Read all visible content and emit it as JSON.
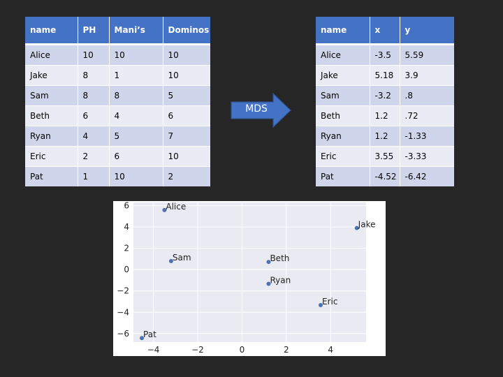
{
  "left_table": {
    "headers": [
      "name",
      "PH",
      "Mani’s",
      "Dominos"
    ],
    "rows": [
      [
        "Alice",
        "10",
        "10",
        "10"
      ],
      [
        "Jake",
        "8",
        "1",
        "10"
      ],
      [
        "Sam",
        "8",
        "8",
        "5"
      ],
      [
        "Beth",
        "6",
        "4",
        "6"
      ],
      [
        "Ryan",
        "4",
        "5",
        "7"
      ],
      [
        "Eric",
        "2",
        "6",
        "10"
      ],
      [
        "Pat",
        "1",
        "10",
        "2"
      ]
    ]
  },
  "arrow": {
    "label": "MDS"
  },
  "right_table": {
    "headers": [
      "name",
      "x",
      "y"
    ],
    "rows": [
      [
        "Alice",
        "-3.5",
        "5.59"
      ],
      [
        "Jake",
        "5.18",
        "3.9"
      ],
      [
        "Sam",
        "-3.2",
        ".8"
      ],
      [
        "Beth",
        "1.2",
        ".72"
      ],
      [
        "Ryan",
        "1.2",
        "-1.33"
      ],
      [
        "Eric",
        "3.55",
        "-3.33"
      ],
      [
        "Pat",
        "-4.52",
        "-6.42"
      ]
    ]
  },
  "colors": {
    "header": "#4472C4",
    "row_odd": "#CFD5EA",
    "row_even": "#E9EBF5",
    "arrow_fill": "#4472C4",
    "plot_bg": "#EAEAF2",
    "point": "#4C72B0"
  },
  "chart_data": {
    "type": "scatter",
    "points": [
      {
        "label": "Alice",
        "x": -3.5,
        "y": 5.59
      },
      {
        "label": "Jake",
        "x": 5.18,
        "y": 3.9
      },
      {
        "label": "Sam",
        "x": -3.2,
        "y": 0.8
      },
      {
        "label": "Beth",
        "x": 1.2,
        "y": 0.72
      },
      {
        "label": "Ryan",
        "x": 1.2,
        "y": -1.33
      },
      {
        "label": "Eric",
        "x": 3.55,
        "y": -3.33
      },
      {
        "label": "Pat",
        "x": -4.52,
        "y": -6.42
      }
    ],
    "xlim": [
      -4.9,
      5.6
    ],
    "ylim": [
      -6.8,
      6.3
    ],
    "xticks": [
      -4,
      -2,
      0,
      2,
      4
    ],
    "yticks": [
      -6,
      -4,
      -2,
      0,
      2,
      4,
      6
    ],
    "xtick_labels": [
      "−4",
      "−2",
      "0",
      "2",
      "4"
    ],
    "ytick_labels": [
      "−6",
      "−4",
      "−2",
      "0",
      "2",
      "4",
      "6"
    ],
    "grid": true,
    "title": "",
    "xlabel": "",
    "ylabel": ""
  }
}
